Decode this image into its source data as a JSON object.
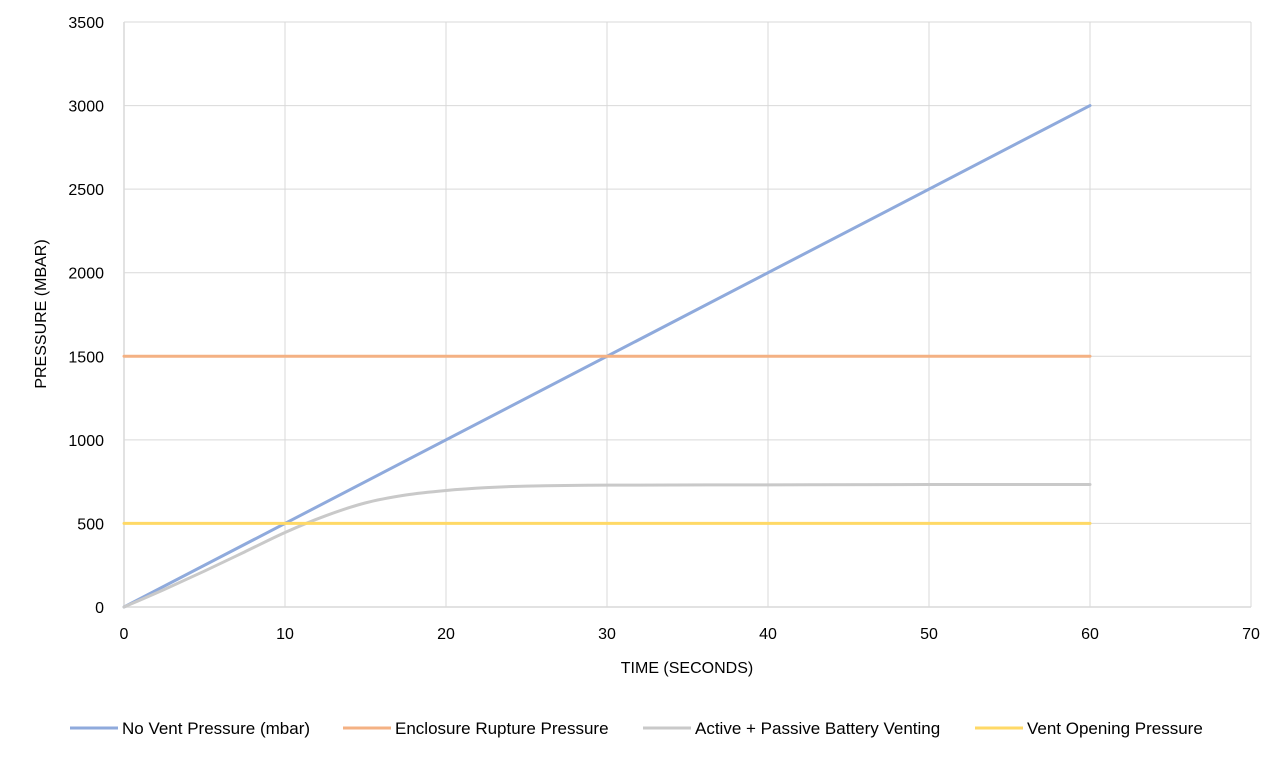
{
  "chart_data": {
    "type": "line",
    "title": "",
    "xlabel": "TIME (SECONDS)",
    "ylabel": "PRESSURE (MBAR)",
    "xlim": [
      0,
      70
    ],
    "ylim": [
      0,
      3500
    ],
    "xticks": [
      0,
      10,
      20,
      30,
      40,
      50,
      60,
      70
    ],
    "yticks": [
      0,
      500,
      1000,
      1500,
      2000,
      2500,
      3000,
      3500
    ],
    "grid": true,
    "legend_position": "bottom",
    "series": [
      {
        "name": "No Vent Pressure (mbar)",
        "color": "#8faadc",
        "x": [
          0,
          60
        ],
        "y": [
          0,
          3000
        ]
      },
      {
        "name": "Enclosure Rupture Pressure",
        "color": "#f4b183",
        "x": [
          0,
          60
        ],
        "y": [
          1500,
          1500
        ]
      },
      {
        "name": "Active + Passive Battery Venting",
        "color": "#c9c9c9",
        "x": [
          0,
          2.5,
          5,
          7.5,
          10,
          12.5,
          15,
          17.5,
          20,
          22.5,
          25,
          30,
          40,
          50,
          60
        ],
        "y": [
          0,
          105,
          215,
          330,
          446,
          545,
          623,
          670,
          697,
          714,
          723,
          729,
          731,
          733,
          733
        ]
      },
      {
        "name": "Vent Opening Pressure",
        "color": "#ffd966",
        "x": [
          0,
          60
        ],
        "y": [
          500,
          500
        ]
      }
    ]
  }
}
